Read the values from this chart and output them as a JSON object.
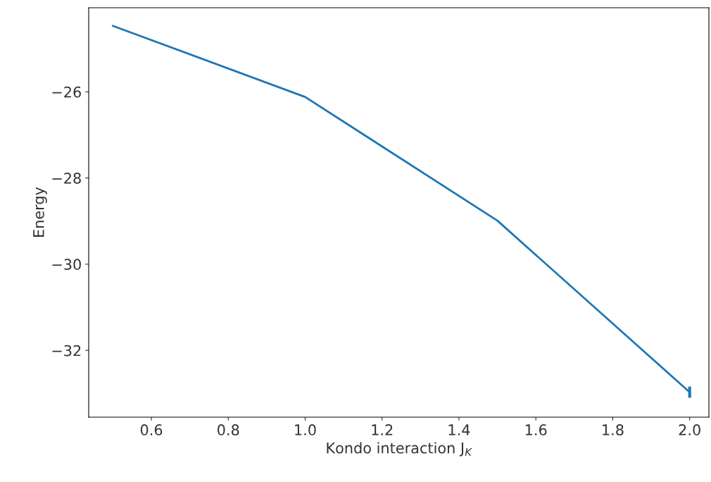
{
  "chart_data": {
    "type": "line",
    "xlabel": "Kondo interaction J$_{K}$",
    "ylabel": "Energy",
    "x": [
      0.5,
      1.0,
      1.5,
      2.0
    ],
    "series": [
      {
        "color": "#1f77b4",
        "values": [
          -24.47,
          -26.12,
          -28.99,
          -32.97
        ],
        "errors": [
          null,
          null,
          null,
          0.13
        ]
      }
    ],
    "xlim": [
      0.437,
      2.05
    ],
    "xticks": [
      0.6,
      0.8,
      {
        "value": 1,
        "label": "1.0"
      },
      1.2,
      1.4,
      1.6,
      1.8,
      {
        "value": 2,
        "label": "2.0"
      }
    ],
    "ylim": [
      -33.55,
      -24.05
    ],
    "yticks": [
      {
        "value": -32,
        "label": "−32"
      },
      {
        "value": -30,
        "label": "−30"
      },
      {
        "value": -28,
        "label": "−28"
      },
      {
        "value": -26,
        "label": "−26"
      }
    ],
    "grid": false,
    "legend": false
  }
}
